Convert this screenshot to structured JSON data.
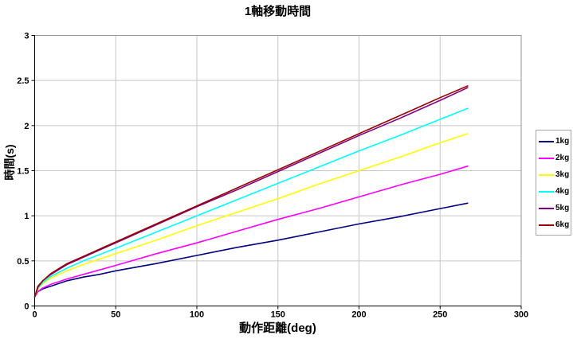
{
  "chart_data": {
    "type": "line",
    "title": "1軸移動時間",
    "xlabel": "動作距離(deg)",
    "ylabel": "時間(s)",
    "xlim": [
      0,
      300
    ],
    "ylim": [
      0,
      3
    ],
    "xticks": [
      0,
      50,
      100,
      150,
      200,
      250,
      300
    ],
    "yticks": [
      0,
      0.5,
      1,
      1.5,
      2,
      2.5,
      3
    ],
    "grid": true,
    "legend_position": "right",
    "x": [
      0,
      2,
      5,
      10,
      20,
      30,
      40,
      50,
      75,
      100,
      125,
      150,
      175,
      200,
      225,
      250,
      267
    ],
    "series": [
      {
        "name": "1kg",
        "color": "#000080",
        "values": [
          0.1,
          0.16,
          0.19,
          0.22,
          0.28,
          0.32,
          0.35,
          0.39,
          0.47,
          0.56,
          0.65,
          0.73,
          0.82,
          0.91,
          0.99,
          1.08,
          1.14
        ]
      },
      {
        "name": "2kg",
        "color": "#FF00FF",
        "values": [
          0.1,
          0.16,
          0.2,
          0.24,
          0.3,
          0.35,
          0.4,
          0.45,
          0.58,
          0.7,
          0.83,
          0.96,
          1.08,
          1.21,
          1.34,
          1.46,
          1.55
        ]
      },
      {
        "name": "3kg",
        "color": "#FFFF00",
        "values": [
          0.1,
          0.19,
          0.25,
          0.31,
          0.39,
          0.46,
          0.52,
          0.58,
          0.73,
          0.89,
          1.04,
          1.19,
          1.35,
          1.5,
          1.65,
          1.81,
          1.91
        ]
      },
      {
        "name": "4kg",
        "color": "#00FFFF",
        "values": [
          0.1,
          0.2,
          0.26,
          0.33,
          0.42,
          0.5,
          0.57,
          0.64,
          0.82,
          1.0,
          1.18,
          1.36,
          1.54,
          1.72,
          1.89,
          2.07,
          2.19
        ]
      },
      {
        "name": "5kg",
        "color": "#800080",
        "values": [
          0.1,
          0.21,
          0.28,
          0.35,
          0.46,
          0.54,
          0.62,
          0.7,
          0.9,
          1.1,
          1.29,
          1.49,
          1.69,
          1.89,
          2.08,
          2.28,
          2.42
        ]
      },
      {
        "name": "6kg",
        "color": "#990000",
        "values": [
          0.1,
          0.22,
          0.28,
          0.36,
          0.47,
          0.55,
          0.63,
          0.71,
          0.91,
          1.11,
          1.31,
          1.51,
          1.71,
          1.91,
          2.11,
          2.31,
          2.44
        ]
      }
    ],
    "style": {
      "gridline_color": "#c6c6c6",
      "plot_border_color": "#969696",
      "axis_color": "#000000",
      "background": "#ffffff",
      "line_width": 1.6
    }
  }
}
